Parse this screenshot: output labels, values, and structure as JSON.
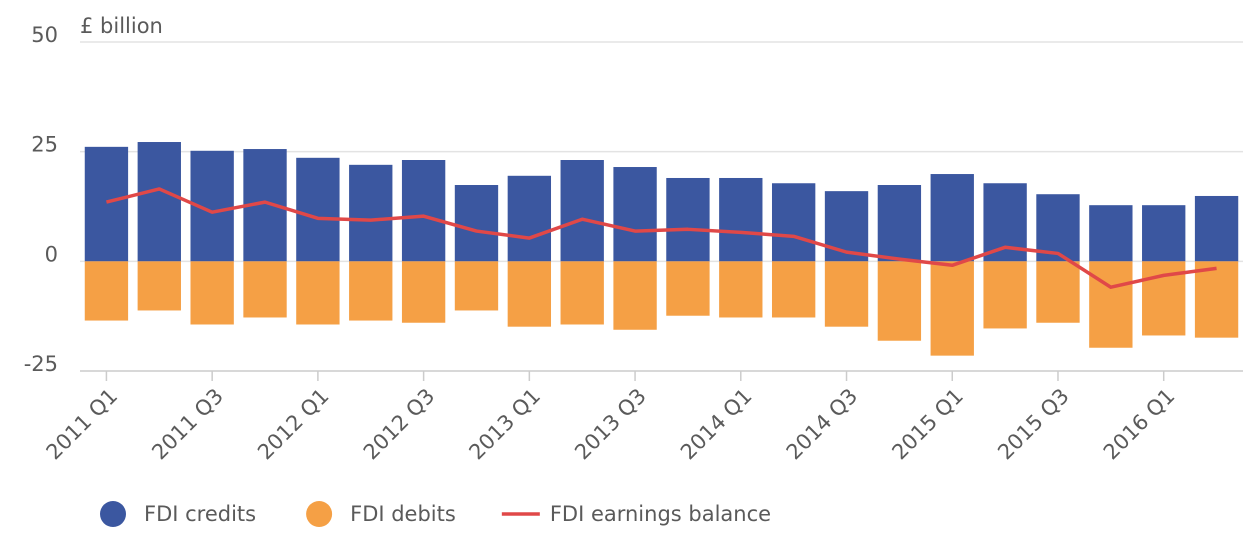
{
  "chart_data": {
    "type": "bar",
    "stacked": true,
    "y_axis_label": "£ billion",
    "categories": [
      "2011 Q1",
      null,
      "2011 Q3",
      null,
      "2012 Q1",
      null,
      "2012 Q3",
      null,
      "2013 Q1",
      null,
      "2013 Q3",
      null,
      "2014 Q1",
      null,
      "2014 Q3",
      null,
      "2015 Q1",
      null,
      "2015 Q3",
      null,
      "2016 Q1",
      null
    ],
    "series": [
      {
        "name": "FDI credits",
        "type": "bar",
        "color": "#3b57a0",
        "values": [
          26.1,
          27.2,
          25.2,
          25.6,
          23.6,
          22.0,
          23.1,
          17.4,
          19.5,
          23.1,
          21.5,
          19.0,
          19.0,
          17.8,
          16.0,
          17.4,
          19.9,
          17.8,
          15.3,
          12.8,
          12.8,
          14.9
        ]
      },
      {
        "name": "FDI debits",
        "type": "bar",
        "color": "#f5a045",
        "values": [
          -13.5,
          -11.2,
          -14.4,
          -12.8,
          -14.4,
          -13.5,
          -14.0,
          -11.2,
          -14.9,
          -14.4,
          -15.6,
          -12.4,
          -12.8,
          -12.8,
          -14.9,
          -18.1,
          -21.5,
          -15.3,
          -14.0,
          -19.7,
          -16.9,
          -17.4
        ]
      },
      {
        "name": "FDI earnings balance",
        "type": "line",
        "color": "#e04848",
        "values": [
          13.5,
          16.5,
          11.2,
          13.5,
          9.8,
          9.4,
          10.3,
          6.9,
          5.3,
          9.6,
          6.9,
          7.3,
          6.6,
          5.7,
          2.1,
          0.5,
          -0.9,
          3.2,
          1.8,
          -5.9,
          -3.2,
          -1.6
        ]
      }
    ],
    "ylim": [
      -25,
      50
    ],
    "yticks": [
      -25,
      0,
      25,
      50
    ],
    "grid": true
  }
}
